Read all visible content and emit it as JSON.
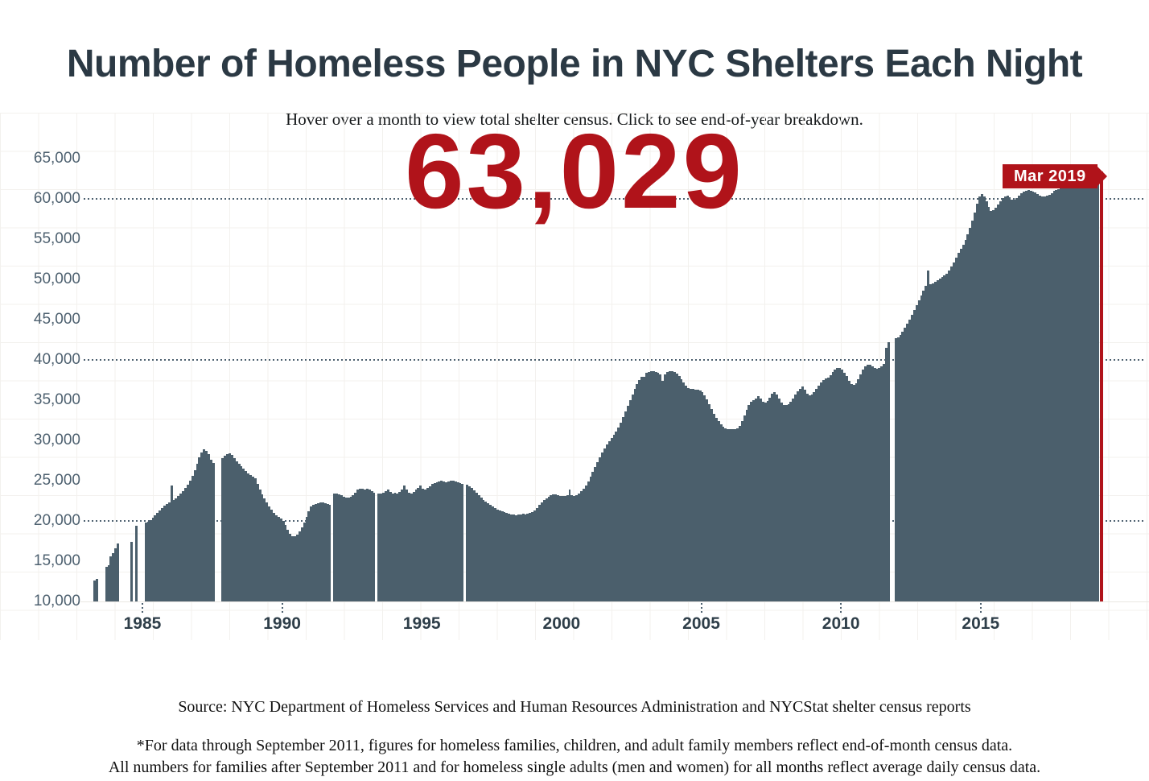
{
  "page": {
    "title": "Number of Homeless People in NYC Shelters Each Night",
    "subtitle": "Hover over a month to view total shelter census. Click to see end-of-year breakdown.",
    "footer": {
      "source": "Source: NYC Department of Homeless Services and Human Resources Administration and NYCStat shelter census reports",
      "note_line1": "*For data through September 2011, figures for homeless families, children, and adult family members reflect end-of-month census data.",
      "note_line2": "All numbers for families after September 2011 and for homeless single adults (men and women) for all months reflect average daily census data."
    }
  },
  "colors": {
    "bar": "#4b5f6c",
    "accent_red": "#b0131a",
    "axis_text": "#4e6170",
    "title_text": "#2b3944",
    "grid_line": "#f3f1ee"
  },
  "tooltip": {
    "selected_month": "Mar 2019",
    "selected_value": "63,029"
  },
  "axes": {
    "y_labels": [
      {
        "text": "65,000",
        "value": 65000
      },
      {
        "text": "60,000",
        "value": 60000
      },
      {
        "text": "55,000",
        "value": 55000
      },
      {
        "text": "50,000",
        "value": 50000
      },
      {
        "text": "45,000",
        "value": 45000
      },
      {
        "text": "40,000",
        "value": 40000
      },
      {
        "text": "35,000",
        "value": 35000
      },
      {
        "text": "30,000",
        "value": 30000
      },
      {
        "text": "25,000",
        "value": 25000
      },
      {
        "text": "20,000",
        "value": 20000
      },
      {
        "text": "15,000",
        "value": 15000
      },
      {
        "text": "10,000",
        "value": 10000
      }
    ],
    "x_labels": [
      {
        "text": "1985",
        "year": 1985,
        "tick": true
      },
      {
        "text": "1990",
        "year": 1990,
        "tick": true
      },
      {
        "text": "1995",
        "year": 1995,
        "tick": false
      },
      {
        "text": "2000",
        "year": 2000,
        "tick": false
      },
      {
        "text": "2005",
        "year": 2005,
        "tick": true
      },
      {
        "text": "2010",
        "year": 2010,
        "tick": true
      },
      {
        "text": "2015",
        "year": 2015,
        "tick": true
      }
    ],
    "dotted_values": [
      60000,
      40000,
      20000
    ]
  },
  "chart_data": {
    "type": "bar",
    "title": "Number of Homeless People in NYC Shelters Each Night",
    "x_unit": "month",
    "x_start": "1983-01",
    "x_end": "2019-03",
    "ylim": [
      10000,
      65000
    ],
    "grid": true,
    "legend": "none",
    "highlight": {
      "month": "Mar 2019",
      "value": 63029
    },
    "note": "null entries are months with no reported data (white gaps in the bar series)",
    "series_by_year": {
      "1983": [
        null,
        null,
        null,
        12600,
        12800,
        null,
        null,
        null,
        14300,
        14500,
        15600,
        16000
      ],
      "1984": [
        16600,
        17200,
        null,
        null,
        null,
        null,
        null,
        17400,
        null,
        19400,
        null,
        null
      ],
      "1985": [
        null,
        19800,
        19900,
        20100,
        20400,
        20700,
        21000,
        21300,
        21600,
        21900,
        22100,
        22300
      ],
      "1986": [
        24400,
        22600,
        22800,
        23100,
        23400,
        23700,
        24100,
        24500,
        25000,
        25600,
        26300,
        27100
      ],
      "1987": [
        27900,
        28500,
        28900,
        28700,
        28300,
        27600,
        27200,
        null,
        null,
        null,
        27800,
        28100
      ],
      "1988": [
        28300,
        28400,
        28200,
        27800,
        27400,
        27100,
        26800,
        26500,
        26200,
        25900,
        25700,
        25500
      ],
      "1989": [
        25300,
        24600,
        23900,
        23300,
        22800,
        22300,
        21800,
        21400,
        21000,
        20700,
        20500,
        20300
      ],
      "1990": [
        20000,
        19500,
        18900,
        18400,
        18100,
        18100,
        18300,
        18700,
        19200,
        19800,
        20500,
        21200
      ],
      "1991": [
        21800,
        22000,
        22100,
        22200,
        22300,
        22300,
        22200,
        22100,
        22000,
        null,
        23400,
        23400
      ],
      "1992": [
        23300,
        23200,
        23000,
        22900,
        22900,
        23000,
        23200,
        23500,
        23900,
        24000,
        24000,
        23900
      ],
      "1993": [
        24000,
        23900,
        23700,
        23500,
        null,
        23400,
        23400,
        23500,
        23700,
        23900,
        23600,
        23400
      ],
      "1994": [
        23500,
        23400,
        23600,
        23900,
        24400,
        23900,
        23500,
        23400,
        23600,
        23900,
        24100,
        24400
      ],
      "1995": [
        24000,
        23900,
        24100,
        24300,
        24600,
        24700,
        24800,
        24900,
        25000,
        24900,
        24800,
        24900
      ],
      "1996": [
        25000,
        25000,
        24900,
        24800,
        24700,
        24600,
        null,
        24500,
        24300,
        24100,
        23800,
        23500
      ],
      "1997": [
        23200,
        22900,
        22600,
        22400,
        22200,
        22000,
        21800,
        21600,
        21400,
        21300,
        21200,
        21100
      ],
      "1998": [
        21000,
        20900,
        20800,
        20800,
        20700,
        20800,
        20800,
        20900,
        20800,
        20900,
        21000,
        21100
      ],
      "1999": [
        21300,
        21600,
        22000,
        22300,
        22600,
        22800,
        23000,
        23200,
        23300,
        23300,
        23200,
        23100
      ],
      "2000": [
        23100,
        23100,
        23200,
        23900,
        23200,
        23100,
        23200,
        23400,
        23700,
        24000,
        24400,
        24900
      ],
      "2001": [
        25500,
        26100,
        26700,
        27300,
        27900,
        28500,
        29000,
        29500,
        29900,
        30300,
        30700,
        31100
      ],
      "2002": [
        31600,
        32200,
        32900,
        33600,
        34300,
        35000,
        35700,
        36400,
        37000,
        37500,
        37900,
        37900
      ],
      "2003": [
        38400,
        38500,
        38600,
        38600,
        38500,
        38400,
        38200,
        37400,
        38200,
        38500,
        38600,
        38600
      ],
      "2004": [
        38500,
        38300,
        38000,
        37600,
        37200,
        36800,
        36500,
        36400,
        36400,
        36300,
        36300,
        36200
      ],
      "2005": [
        36000,
        35600,
        35100,
        34500,
        33900,
        33300,
        32800,
        32400,
        32000,
        31700,
        31500,
        31400
      ],
      "2006": [
        31400,
        31400,
        31400,
        31500,
        31800,
        32400,
        33100,
        33800,
        34400,
        34800,
        35000,
        35200
      ],
      "2007": [
        35500,
        35200,
        34800,
        34700,
        34900,
        35300,
        35800,
        36000,
        35700,
        35200,
        34700,
        34400
      ],
      "2008": [
        34400,
        34500,
        34800,
        35200,
        35700,
        36100,
        36400,
        36700,
        36300,
        35800,
        35600,
        35700
      ],
      "2009": [
        36000,
        36400,
        36800,
        37200,
        37500,
        37700,
        37800,
        38100,
        38500,
        38800,
        39000,
        39000
      ],
      "2010": [
        38800,
        38400,
        38000,
        37400,
        37000,
        36900,
        37100,
        37600,
        38200,
        38800,
        39200,
        39400
      ],
      "2011": [
        39400,
        39200,
        39000,
        38900,
        39000,
        39200,
        39500,
        41500,
        42200,
        null,
        null,
        42700
      ],
      "2012": [
        42800,
        43100,
        43500,
        44000,
        44500,
        45000,
        45600,
        46200,
        46800,
        47400,
        48000,
        48600
      ],
      "2013": [
        49200,
        51100,
        49400,
        49500,
        49700,
        49900,
        50100,
        50300,
        50500,
        50700,
        51100,
        51600
      ],
      "2014": [
        52100,
        52700,
        53300,
        53800,
        54300,
        54900,
        55600,
        56400,
        57300,
        58300,
        59400,
        60300
      ],
      "2015": [
        60600,
        60300,
        59700,
        59000,
        58500,
        58600,
        58900,
        59300,
        59700,
        60100,
        60300,
        60400
      ],
      "2016": [
        60200,
        59900,
        59900,
        60100,
        60400,
        60700,
        60900,
        61000,
        61100,
        61000,
        60900,
        60800
      ],
      "2017": [
        60600,
        60400,
        60300,
        60300,
        60400,
        60500,
        60700,
        61000,
        61100,
        61200,
        61300,
        61400
      ],
      "2018": [
        61600,
        61800,
        62000,
        62100,
        62200,
        62300,
        62500,
        62600,
        62700,
        62800,
        62900,
        63000
      ],
      "2019": [
        63100,
        63200,
        63029
      ]
    }
  }
}
